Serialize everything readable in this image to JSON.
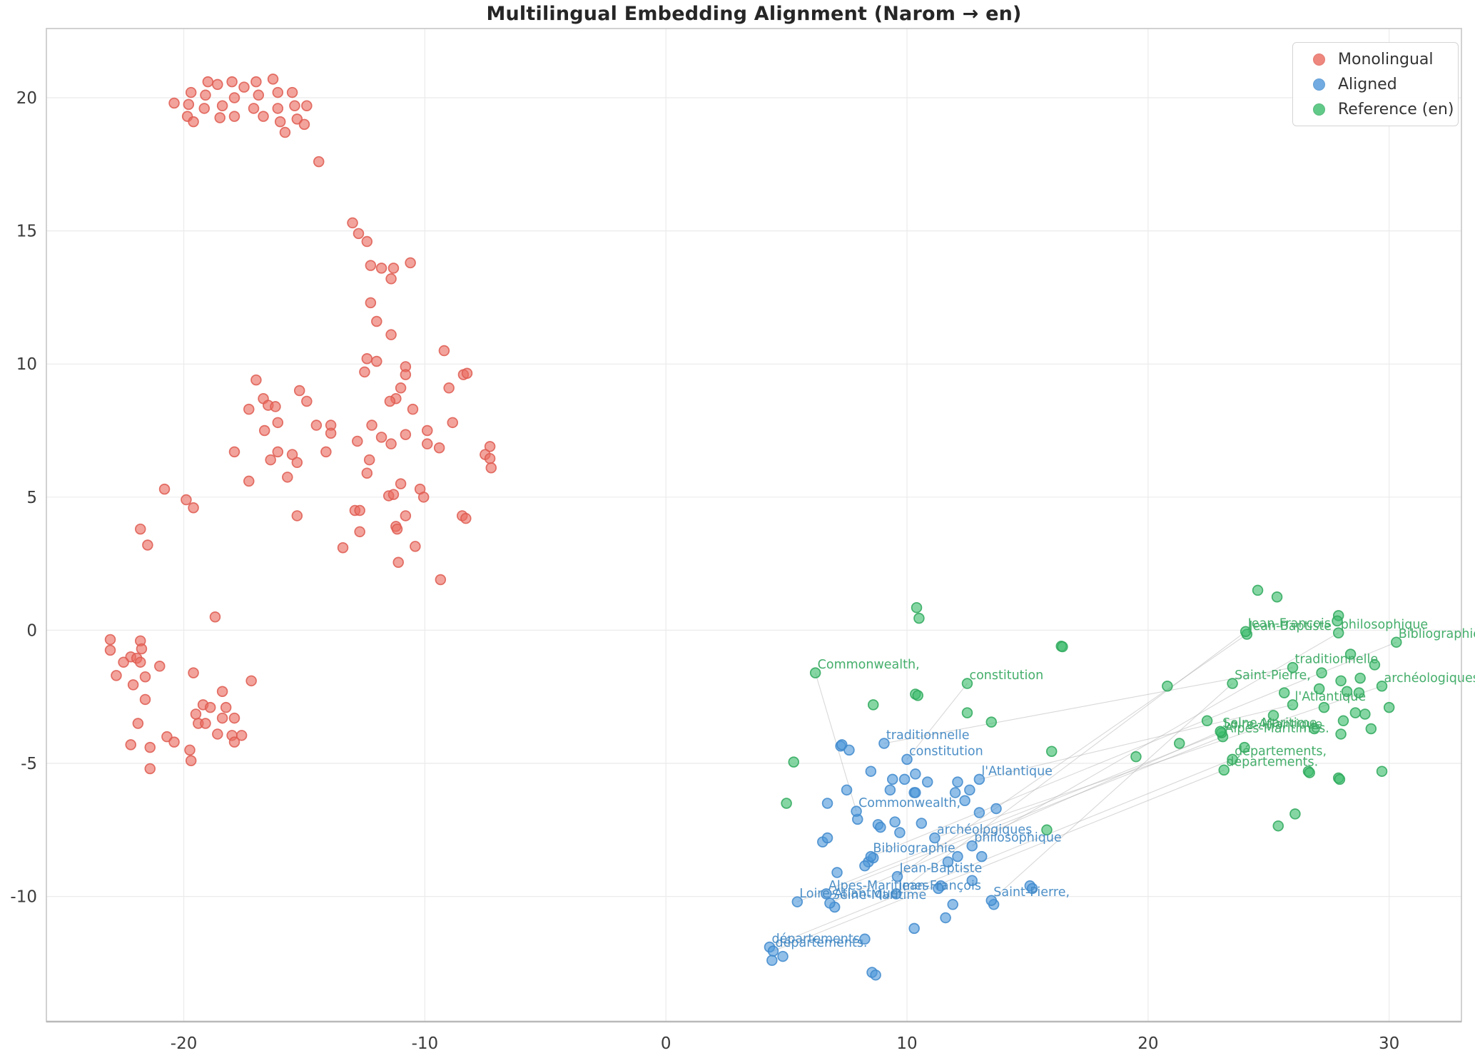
{
  "title": "Multilingual Embedding Alignment (Narom → en)",
  "legend": {
    "items": [
      {
        "label": "Monolingual",
        "fill": "#EA6A5F",
        "stroke": "#DE5A50"
      },
      {
        "label": "Aligned",
        "fill": "#4E97DA",
        "stroke": "#3E88CC"
      },
      {
        "label": "Reference (en)",
        "fill": "#3CBD6C",
        "stroke": "#2EA85C"
      }
    ]
  },
  "chart_data": {
    "type": "scatter",
    "title": "Multilingual Embedding Alignment (Narom → en)",
    "xlabel": "",
    "ylabel": "",
    "xlim": [
      -25.7,
      33.0
    ],
    "ylim": [
      -14.7,
      22.6
    ],
    "x_ticks": [
      -20,
      -10,
      0,
      10,
      20,
      30
    ],
    "y_ticks": [
      20,
      15,
      10,
      5,
      0,
      -5,
      -10
    ],
    "grid": true,
    "legend_position": "upper right",
    "colors": {
      "grid": "#ebebeb",
      "spine": "#c6c6c6",
      "bottom_spine": "#b9b9b9",
      "tick_label": "#3b3b3b",
      "alignment_line": "#a8a8a8",
      "aligned_label_text": "#4389C4",
      "reference_label_text": "#3BAA63"
    },
    "series": [
      {
        "name": "Monolingual",
        "fill": "#EA6A5F",
        "stroke": "#DE5A50",
        "points": [
          [
            -20.4,
            19.8
          ],
          [
            -19.7,
            20.2
          ],
          [
            -19.8,
            19.75
          ],
          [
            -19.85,
            19.3
          ],
          [
            -19.6,
            19.1
          ],
          [
            -19.1,
            20.1
          ],
          [
            -19.15,
            19.6
          ],
          [
            -19.0,
            20.6
          ],
          [
            -18.6,
            20.5
          ],
          [
            -18.5,
            19.25
          ],
          [
            -18.4,
            19.7
          ],
          [
            -18.0,
            20.6
          ],
          [
            -17.9,
            20.0
          ],
          [
            -17.9,
            19.3
          ],
          [
            -17.5,
            20.4
          ],
          [
            -17.1,
            19.6
          ],
          [
            -17.0,
            20.6
          ],
          [
            -16.9,
            20.1
          ],
          [
            -16.7,
            19.3
          ],
          [
            -16.3,
            20.7
          ],
          [
            -16.1,
            20.2
          ],
          [
            -16.1,
            19.6
          ],
          [
            -16.0,
            19.1
          ],
          [
            -15.8,
            18.7
          ],
          [
            -15.5,
            20.2
          ],
          [
            -15.4,
            19.7
          ],
          [
            -15.3,
            19.2
          ],
          [
            -15.0,
            19.0
          ],
          [
            -14.9,
            19.7
          ],
          [
            -14.4,
            17.6
          ],
          [
            -13.0,
            15.3
          ],
          [
            -12.75,
            14.9
          ],
          [
            -12.4,
            14.6
          ],
          [
            -12.25,
            13.7
          ],
          [
            -11.8,
            13.6
          ],
          [
            -11.4,
            13.2
          ],
          [
            -11.3,
            13.6
          ],
          [
            -10.6,
            13.8
          ],
          [
            -12.25,
            12.3
          ],
          [
            -12.0,
            11.6
          ],
          [
            -11.4,
            11.1
          ],
          [
            -9.2,
            10.5
          ],
          [
            -12.4,
            10.2
          ],
          [
            -12.0,
            10.1
          ],
          [
            -12.5,
            9.7
          ],
          [
            -10.8,
            9.9
          ],
          [
            -10.8,
            9.6
          ],
          [
            -8.4,
            9.6
          ],
          [
            -8.25,
            9.65
          ],
          [
            -9.0,
            9.1
          ],
          [
            -17.0,
            9.4
          ],
          [
            -15.2,
            9.0
          ],
          [
            -16.7,
            8.7
          ],
          [
            -14.9,
            8.6
          ],
          [
            -17.3,
            8.3
          ],
          [
            -16.5,
            8.45
          ],
          [
            -16.2,
            8.4
          ],
          [
            -11.0,
            9.1
          ],
          [
            -11.2,
            8.7
          ],
          [
            -11.45,
            8.6
          ],
          [
            -10.5,
            8.3
          ],
          [
            -16.1,
            7.8
          ],
          [
            -8.85,
            7.8
          ],
          [
            -16.65,
            7.5
          ],
          [
            -14.5,
            7.7
          ],
          [
            -13.9,
            7.7
          ],
          [
            -13.9,
            7.4
          ],
          [
            -12.2,
            7.7
          ],
          [
            -12.8,
            7.1
          ],
          [
            -11.8,
            7.25
          ],
          [
            -11.4,
            7.0
          ],
          [
            -10.8,
            7.35
          ],
          [
            -9.9,
            7.5
          ],
          [
            -9.9,
            7.0
          ],
          [
            -9.4,
            6.85
          ],
          [
            -17.9,
            6.7
          ],
          [
            -16.1,
            6.7
          ],
          [
            -16.4,
            6.4
          ],
          [
            -15.5,
            6.6
          ],
          [
            -15.3,
            6.3
          ],
          [
            -14.1,
            6.7
          ],
          [
            -12.3,
            6.4
          ],
          [
            -12.4,
            5.9
          ],
          [
            -17.3,
            5.6
          ],
          [
            -15.7,
            5.75
          ],
          [
            -11.0,
            5.5
          ],
          [
            -11.5,
            5.05
          ],
          [
            -11.3,
            5.1
          ],
          [
            -10.2,
            5.3
          ],
          [
            -10.05,
            5.0
          ],
          [
            -15.3,
            4.3
          ],
          [
            -12.9,
            4.5
          ],
          [
            -12.7,
            4.5
          ],
          [
            -10.8,
            4.3
          ],
          [
            -11.2,
            3.9
          ],
          [
            -11.15,
            3.8
          ],
          [
            -8.45,
            4.3
          ],
          [
            -8.3,
            4.2
          ],
          [
            -12.7,
            3.7
          ],
          [
            -7.3,
            6.9
          ],
          [
            -7.5,
            6.6
          ],
          [
            -7.3,
            6.45
          ],
          [
            -7.25,
            6.1
          ],
          [
            -10.4,
            3.15
          ],
          [
            -13.4,
            3.1
          ],
          [
            -11.1,
            2.55
          ],
          [
            -9.35,
            1.9
          ],
          [
            -20.8,
            5.3
          ],
          [
            -19.9,
            4.9
          ],
          [
            -19.6,
            4.6
          ],
          [
            -21.8,
            3.8
          ],
          [
            -21.5,
            3.2
          ],
          [
            -18.7,
            0.5
          ],
          [
            -23.05,
            -0.35
          ],
          [
            -23.05,
            -0.75
          ],
          [
            -21.8,
            -0.4
          ],
          [
            -21.75,
            -0.7
          ],
          [
            -22.2,
            -1.0
          ],
          [
            -21.95,
            -1.05
          ],
          [
            -22.5,
            -1.2
          ],
          [
            -21.8,
            -1.2
          ],
          [
            -21.0,
            -1.35
          ],
          [
            -22.8,
            -1.7
          ],
          [
            -21.6,
            -1.75
          ],
          [
            -22.1,
            -2.05
          ],
          [
            -19.6,
            -1.6
          ],
          [
            -17.2,
            -1.9
          ],
          [
            -18.4,
            -2.3
          ],
          [
            -21.6,
            -2.6
          ],
          [
            -19.2,
            -2.8
          ],
          [
            -18.9,
            -2.9
          ],
          [
            -18.25,
            -2.9
          ],
          [
            -19.5,
            -3.15
          ],
          [
            -19.4,
            -3.5
          ],
          [
            -19.1,
            -3.5
          ],
          [
            -18.4,
            -3.3
          ],
          [
            -17.9,
            -3.3
          ],
          [
            -21.9,
            -3.5
          ],
          [
            -18.6,
            -3.9
          ],
          [
            -18.0,
            -3.95
          ],
          [
            -17.6,
            -3.95
          ],
          [
            -17.9,
            -4.2
          ],
          [
            -22.2,
            -4.3
          ],
          [
            -21.4,
            -4.4
          ],
          [
            -20.7,
            -4.0
          ],
          [
            -20.4,
            -4.2
          ],
          [
            -19.75,
            -4.5
          ],
          [
            -19.7,
            -4.9
          ],
          [
            -21.4,
            -5.2
          ]
        ]
      },
      {
        "name": "Aligned",
        "fill": "#4E97DA",
        "stroke": "#3E88CC",
        "points": [
          [
            7.25,
            -4.35
          ],
          [
            7.3,
            -4.3
          ],
          [
            7.6,
            -4.5
          ],
          [
            8.5,
            -5.3
          ],
          [
            9.4,
            -5.6
          ],
          [
            9.9,
            -5.6
          ],
          [
            10.35,
            -5.4
          ],
          [
            10.85,
            -5.7
          ],
          [
            9.3,
            -6.0
          ],
          [
            10.3,
            -6.1
          ],
          [
            12.1,
            -5.7
          ],
          [
            12.0,
            -6.1
          ],
          [
            12.6,
            -6.0
          ],
          [
            12.4,
            -6.4
          ],
          [
            7.5,
            -6.0
          ],
          [
            6.7,
            -6.5
          ],
          [
            10.35,
            -6.1
          ],
          [
            7.95,
            -7.1
          ],
          [
            8.8,
            -7.3
          ],
          [
            8.9,
            -7.4
          ],
          [
            9.5,
            -7.2
          ],
          [
            10.6,
            -7.25
          ],
          [
            13.0,
            -6.85
          ],
          [
            13.7,
            -6.7
          ],
          [
            9.7,
            -7.6
          ],
          [
            6.5,
            -7.95
          ],
          [
            6.7,
            -7.8
          ],
          [
            8.4,
            -8.7
          ],
          [
            8.25,
            -8.85
          ],
          [
            8.6,
            -8.55
          ],
          [
            12.1,
            -8.5
          ],
          [
            13.1,
            -8.5
          ],
          [
            11.7,
            -8.7
          ],
          [
            7.1,
            -9.1
          ],
          [
            12.7,
            -9.4
          ],
          [
            11.4,
            -9.6
          ],
          [
            11.3,
            -9.7
          ],
          [
            15.1,
            -9.6
          ],
          [
            15.2,
            -9.7
          ],
          [
            13.6,
            -10.3
          ],
          [
            7.0,
            -10.4
          ],
          [
            11.9,
            -10.3
          ],
          [
            11.6,
            -10.8
          ],
          [
            10.3,
            -11.2
          ],
          [
            8.25,
            -11.6
          ],
          [
            8.55,
            -12.85
          ],
          [
            8.7,
            -12.95
          ],
          [
            4.4,
            -12.4
          ],
          [
            4.85,
            -12.25
          ]
        ]
      },
      {
        "name": "Reference (en)",
        "fill": "#3CBD6C",
        "stroke": "#2EA85C",
        "points": [
          [
            10.4,
            0.85
          ],
          [
            10.5,
            0.45
          ],
          [
            27.9,
            0.55
          ],
          [
            27.85,
            0.35
          ],
          [
            24.55,
            1.5
          ],
          [
            25.35,
            1.25
          ],
          [
            10.35,
            -2.4
          ],
          [
            10.45,
            -2.45
          ],
          [
            8.6,
            -2.8
          ],
          [
            12.5,
            -3.1
          ],
          [
            13.5,
            -3.45
          ],
          [
            5.3,
            -4.95
          ],
          [
            5.0,
            -6.5
          ],
          [
            16.0,
            -4.55
          ],
          [
            15.8,
            -7.5
          ],
          [
            16.4,
            -0.6
          ],
          [
            16.45,
            -0.62
          ],
          [
            20.8,
            -2.1
          ],
          [
            19.5,
            -4.75
          ],
          [
            21.3,
            -4.25
          ],
          [
            22.45,
            -3.4
          ],
          [
            24.0,
            -4.4
          ],
          [
            28.4,
            -0.9
          ],
          [
            29.4,
            -1.3
          ],
          [
            27.2,
            -1.6
          ],
          [
            28.0,
            -1.9
          ],
          [
            28.8,
            -1.8
          ],
          [
            25.65,
            -2.35
          ],
          [
            27.1,
            -2.2
          ],
          [
            28.25,
            -2.3
          ],
          [
            28.75,
            -2.35
          ],
          [
            27.3,
            -2.9
          ],
          [
            30.0,
            -2.9
          ],
          [
            28.6,
            -3.1
          ],
          [
            29.0,
            -3.15
          ],
          [
            25.2,
            -3.2
          ],
          [
            26.9,
            -3.7
          ],
          [
            28.1,
            -3.4
          ],
          [
            28.0,
            -3.9
          ],
          [
            29.25,
            -3.7
          ],
          [
            26.65,
            -5.3
          ],
          [
            26.7,
            -5.35
          ],
          [
            27.9,
            -5.55
          ],
          [
            27.95,
            -5.6
          ],
          [
            29.7,
            -5.3
          ],
          [
            26.1,
            -6.9
          ],
          [
            25.4,
            -7.35
          ]
        ]
      }
    ],
    "aligned_words": [
      {
        "word": "Commonwealth,",
        "ref_word": "Commonwealth,",
        "aligned": [
          7.9,
          -6.8
        ],
        "reference": [
          6.2,
          -1.6
        ]
      },
      {
        "word": "constitution",
        "ref_word": "constitution",
        "aligned": [
          10.0,
          -4.85
        ],
        "reference": [
          12.5,
          -2.0
        ]
      },
      {
        "word": "traditionnelle",
        "ref_word": "traditionnelle",
        "aligned": [
          9.05,
          -4.25
        ],
        "reference": [
          26.0,
          -1.4
        ]
      },
      {
        "word": "l'Atlantique",
        "ref_word": "l'Atlantique",
        "aligned": [
          13.0,
          -5.6
        ],
        "reference": [
          26.0,
          -2.8
        ]
      },
      {
        "word": "archéologiques",
        "ref_word": "archéologiques",
        "aligned": [
          11.15,
          -7.8
        ],
        "reference": [
          29.7,
          -2.1
        ]
      },
      {
        "word": "philosophique",
        "ref_word": "philosophique",
        "aligned": [
          12.7,
          -8.1
        ],
        "reference": [
          27.9,
          -0.1
        ]
      },
      {
        "word": "Bibliographie",
        "ref_word": "Bibliographie",
        "aligned": [
          8.5,
          -8.5
        ],
        "reference": [
          30.3,
          -0.45
        ]
      },
      {
        "word": "Jean-Baptiste",
        "ref_word": "Jean-Baptiste",
        "aligned": [
          9.6,
          -9.25
        ],
        "reference": [
          24.1,
          -0.15
        ]
      },
      {
        "word": "Jean-François",
        "ref_word": "Jean-François",
        "aligned": [
          9.55,
          -9.9
        ],
        "reference": [
          24.05,
          -0.05
        ]
      },
      {
        "word": "Alpes-Maritimes",
        "ref_word": "Alpes-Maritimes.",
        "aligned": [
          6.65,
          -9.9
        ],
        "reference": [
          23.1,
          -4.0
        ]
      },
      {
        "word": "Loire-Atlantique",
        "ref_word": "Loire-Atlantique",
        "aligned": [
          5.45,
          -10.2
        ],
        "reference": [
          23.05,
          -3.85
        ]
      },
      {
        "word": "Seine-Maritime",
        "ref_word": "Seine-Maritime",
        "aligned": [
          6.8,
          -10.25
        ],
        "reference": [
          23.0,
          -3.8
        ]
      },
      {
        "word": "Saint-Pierre,",
        "ref_word": "Saint-Pierre,",
        "aligned": [
          13.5,
          -10.15
        ],
        "reference": [
          23.5,
          -2.0
        ]
      },
      {
        "word": "départements,",
        "ref_word": "départements,",
        "aligned": [
          4.3,
          -11.9
        ],
        "reference": [
          23.5,
          -4.85
        ]
      },
      {
        "word": "départements.",
        "ref_word": "départements.",
        "aligned": [
          4.45,
          -12.05
        ],
        "reference": [
          23.15,
          -5.25
        ]
      }
    ]
  }
}
